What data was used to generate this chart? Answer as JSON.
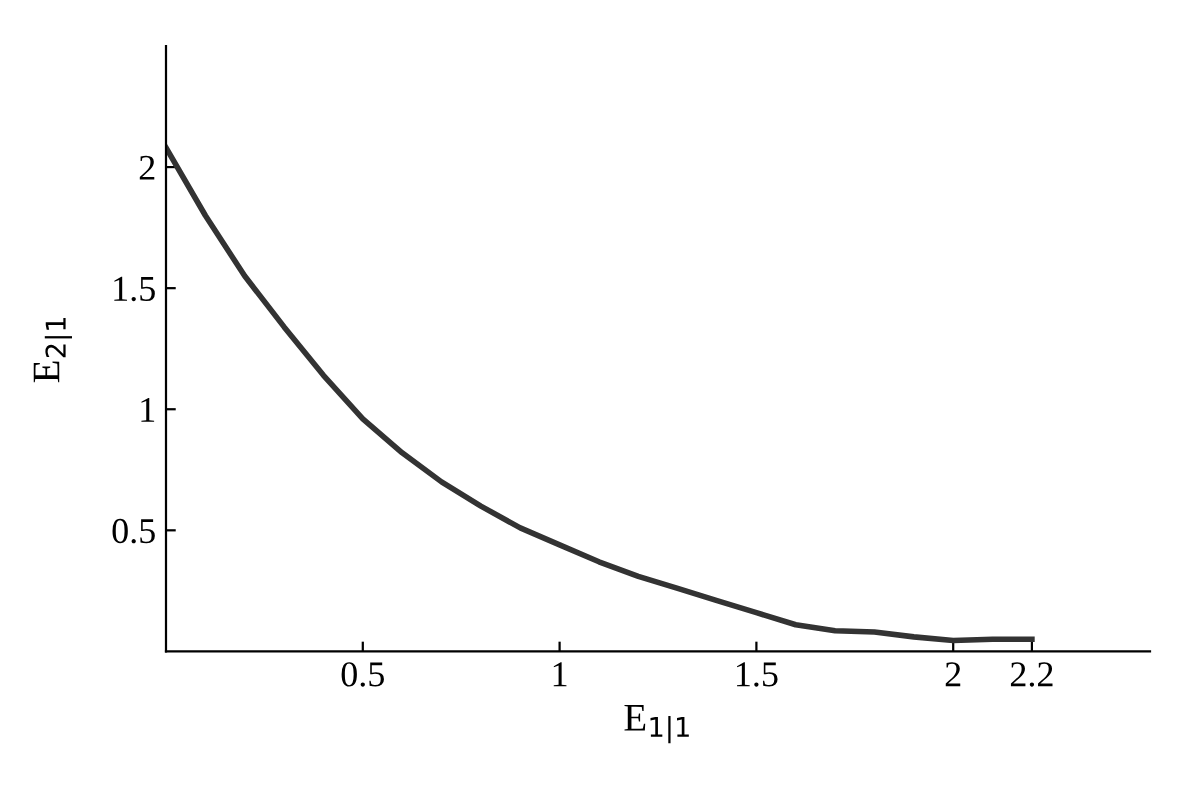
{
  "chart_data": {
    "type": "line",
    "xlabel": "E$_{1|1}$",
    "ylabel": "E$_{2|1}$",
    "x": [
      0,
      0.1,
      0.2,
      0.3,
      0.4,
      0.5,
      0.6,
      0.7,
      0.8,
      0.9,
      1.0,
      1.1,
      1.2,
      1.3,
      1.4,
      1.5,
      1.6,
      1.7,
      1.8,
      1.9,
      2.0,
      2.1,
      2.2
    ],
    "series": [
      {
        "color": "#333333",
        "values": [
          2.08,
          1.8,
          1.55,
          1.34,
          1.14,
          0.96,
          0.82,
          0.7,
          0.6,
          0.51,
          0.44,
          0.37,
          0.31,
          0.26,
          0.21,
          0.16,
          0.11,
          0.085,
          0.08,
          0.06,
          0.045,
          0.05,
          0.05
        ]
      }
    ],
    "xlim": [
      0,
      2.5
    ],
    "ylim": [
      0,
      2.5
    ],
    "xticks": [
      0.5,
      1,
      1.5,
      2,
      2.2
    ],
    "yticks": [
      0.5,
      1,
      1.5,
      2
    ],
    "grid": false,
    "legend": false,
    "marker": "none",
    "line_style": "solid"
  }
}
